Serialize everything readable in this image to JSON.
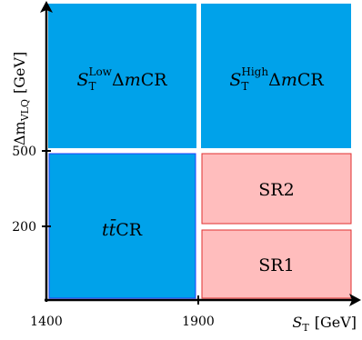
{
  "x_axis": {
    "title_main": "S",
    "title_sub": "T",
    "title_unit": "[GeV]",
    "ticks": [
      "1400",
      "1900"
    ]
  },
  "y_axis": {
    "title_main": "Δm",
    "title_sub": "VLQ",
    "title_unit": "[GeV]",
    "ticks": [
      "500",
      "200"
    ]
  },
  "regions": {
    "low_cr": {
      "s": "S",
      "sub": "T",
      "sup": "Low",
      "tail_delta": "Δ",
      "tail_m": "m",
      "tail_cr": "CR",
      "fill": "#00A2EA"
    },
    "high_cr": {
      "s": "S",
      "sub": "T",
      "sup": "High",
      "tail_delta": "Δ",
      "tail_m": "m",
      "tail_cr": "CR",
      "fill": "#00A2EA"
    },
    "ttbar_cr": {
      "t1": "t",
      "t2": "t̄",
      "cr": "CR",
      "fill": "#00A2EA",
      "stroke": "#1E3FFF"
    },
    "sr2": {
      "label": "SR2",
      "fill": "#FFBDBD",
      "stroke": "#E03030"
    },
    "sr1": {
      "label": "SR1",
      "fill": "#FFBDBD",
      "stroke": "#E03030"
    }
  }
}
